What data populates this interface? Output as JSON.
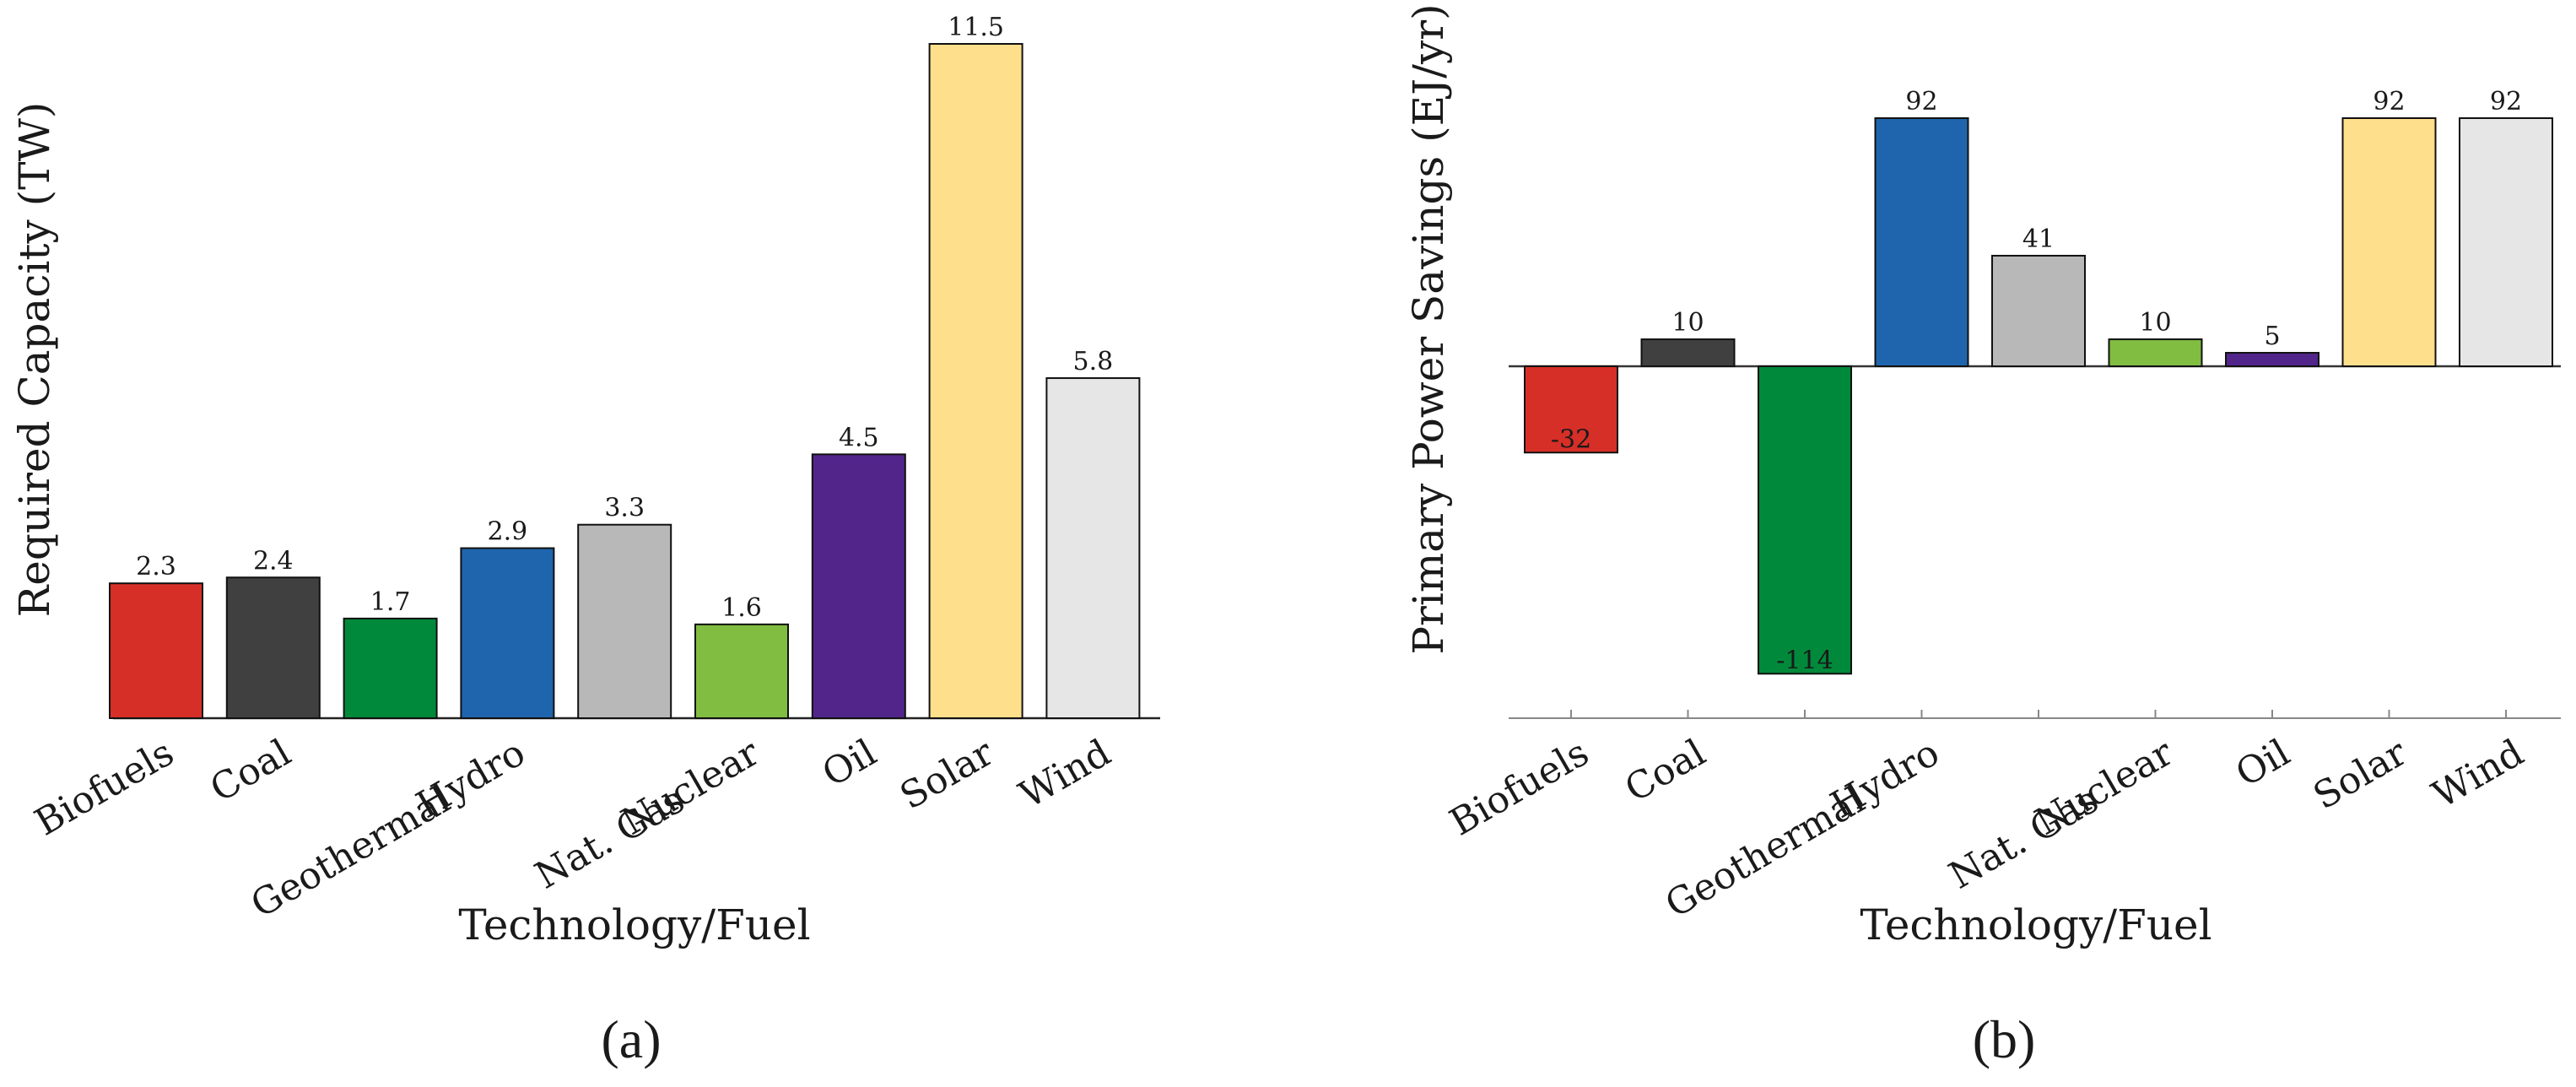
{
  "chart_data": [
    {
      "type": "bar",
      "title": "",
      "panel_label": "(a)",
      "xlabel": "Technology/Fuel",
      "ylabel": "Required Capacity (TW)",
      "categories": [
        "Biofuels",
        "Coal",
        "Geothermal",
        "Hydro",
        "Nat. Gas",
        "Nuclear",
        "Oil",
        "Solar",
        "Wind"
      ],
      "values": [
        2.3,
        2.4,
        1.7,
        2.9,
        3.3,
        1.6,
        4.5,
        11.5,
        5.8
      ],
      "value_labels": [
        "2.3",
        "2.4",
        "1.7",
        "2.9",
        "3.3",
        "1.6",
        "4.5",
        "11.5",
        "5.8"
      ],
      "colors": [
        "#d62f27",
        "#404040",
        "#00893a",
        "#1f65ad",
        "#b8b8b8",
        "#80bd41",
        "#52258a",
        "#fedf8b",
        "#e6e6e6"
      ],
      "ylim": [
        0,
        11.5
      ],
      "grid": false,
      "x_ticks": false
    },
    {
      "type": "bar",
      "title": "",
      "panel_label": "(b)",
      "xlabel": "Technology/Fuel",
      "ylabel": "Primary Power Savings (EJ/yr)",
      "categories": [
        "Biofuels",
        "Coal",
        "Geothermal",
        "Hydro",
        "Nat. Gas",
        "Nuclear",
        "Oil",
        "Solar",
        "Wind"
      ],
      "values": [
        -32,
        10,
        -114,
        92,
        41,
        10,
        5,
        92,
        92
      ],
      "value_labels": [
        "-32",
        "10",
        "-114",
        "92",
        "41",
        "10",
        "5",
        "92",
        "92"
      ],
      "colors": [
        "#d62f27",
        "#404040",
        "#00893a",
        "#1f65ad",
        "#b8b8b8",
        "#80bd41",
        "#52258a",
        "#fedf8b",
        "#e6e6e6"
      ],
      "ylim": [
        -130,
        92
      ],
      "grid": false,
      "x_ticks": true
    }
  ]
}
